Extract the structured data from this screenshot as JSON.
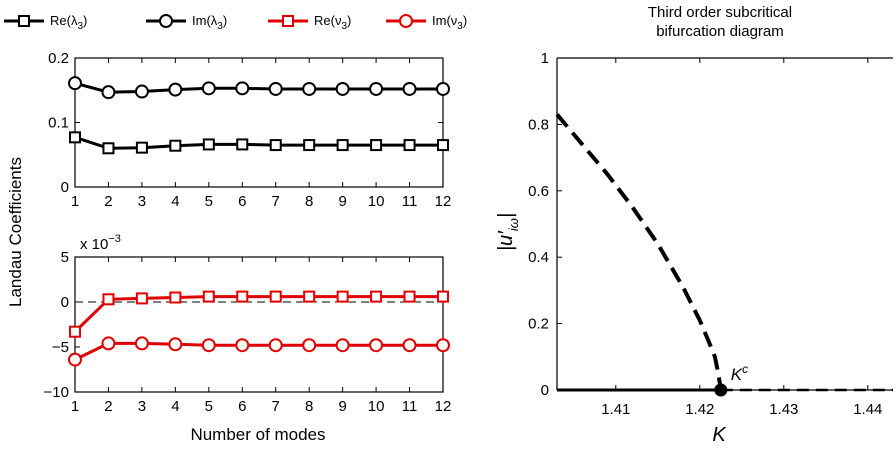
{
  "colors": {
    "black": "#000000",
    "red": "#e00000"
  },
  "legend": [
    {
      "label": "Re(λ",
      "sub": "3",
      "close": ")",
      "color": "black",
      "marker": "square"
    },
    {
      "label": "Im(λ",
      "sub": "3",
      "close": ")",
      "color": "black",
      "marker": "circle"
    },
    {
      "label": "Re(ν",
      "sub": "3",
      "close": ")",
      "color": "red",
      "marker": "square"
    },
    {
      "label": "Im(ν",
      "sub": "3",
      "close": ")",
      "color": "red",
      "marker": "circle"
    }
  ],
  "shared_labels": {
    "ylabel": "Landau Coefficients",
    "xlabel": "Number of modes"
  },
  "chart_data": [
    {
      "type": "line",
      "xlim": [
        1,
        12
      ],
      "ylim": [
        0,
        0.2
      ],
      "xticks": [
        "1",
        "2",
        "3",
        "4",
        "5",
        "6",
        "7",
        "8",
        "9",
        "10",
        "11",
        "12"
      ],
      "yticks": [
        "0",
        "0.1",
        "0.2"
      ],
      "x": [
        1,
        2,
        3,
        4,
        5,
        6,
        7,
        8,
        9,
        10,
        11,
        12
      ],
      "series": [
        {
          "name": "Re(λ3)",
          "color": "black",
          "marker": "square",
          "values": [
            0.077,
            0.06,
            0.061,
            0.064,
            0.066,
            0.066,
            0.065,
            0.065,
            0.065,
            0.065,
            0.065,
            0.065
          ]
        },
        {
          "name": "Im(λ3)",
          "color": "black",
          "marker": "circle",
          "values": [
            0.161,
            0.147,
            0.148,
            0.151,
            0.153,
            0.153,
            0.152,
            0.152,
            0.152,
            0.152,
            0.152,
            0.152
          ]
        }
      ]
    },
    {
      "type": "line",
      "xlim": [
        1,
        12
      ],
      "ylim": [
        -0.01,
        0.005
      ],
      "exponent_label": "x 10",
      "exponent_power": "−3",
      "xticks": [
        "1",
        "2",
        "3",
        "4",
        "5",
        "6",
        "7",
        "8",
        "9",
        "10",
        "11",
        "12"
      ],
      "yticks": [
        "5",
        "0",
        "−5",
        "−10"
      ],
      "reference_line": 0,
      "x": [
        1,
        2,
        3,
        4,
        5,
        6,
        7,
        8,
        9,
        10,
        11,
        12
      ],
      "series": [
        {
          "name": "Re(ν3)",
          "color": "red",
          "marker": "square",
          "values": [
            -0.0033,
            0.0003,
            0.0004,
            0.0005,
            0.0006,
            0.0006,
            0.0006,
            0.0006,
            0.0006,
            0.0006,
            0.0006,
            0.0006
          ]
        },
        {
          "name": "Im(ν3)",
          "color": "red",
          "marker": "circle",
          "values": [
            -0.0064,
            -0.0046,
            -0.0046,
            -0.0047,
            -0.0048,
            -0.0048,
            -0.0048,
            -0.0048,
            -0.0048,
            -0.0048,
            -0.0048,
            -0.0048
          ]
        }
      ]
    },
    {
      "type": "line",
      "title": "Third order subcritical bifurcation diagram",
      "title_lines": [
        "Third order subcritical",
        "bifurcation diagram"
      ],
      "xlabel": "K",
      "ylabel": "|u′iω|",
      "ylabel_main": "|u′",
      "ylabel_sub": "iω",
      "ylabel_close": "|",
      "xlim": [
        1.403,
        1.443
      ],
      "ylim": [
        0,
        1
      ],
      "xticks": [
        "1.41",
        "1.42",
        "1.43",
        "1.44"
      ],
      "yticks": [
        "0",
        "0.2",
        "0.4",
        "0.6",
        "0.8",
        "1"
      ],
      "critical_point": {
        "K": 1.4225,
        "value": 0,
        "label": "K",
        "label_sup": "c"
      },
      "unstable_branch": {
        "style": "dashed",
        "K": [
          1.403,
          1.406,
          1.409,
          1.412,
          1.415,
          1.418,
          1.42,
          1.421,
          1.4218,
          1.4222,
          1.4225
        ],
        "values": [
          0.83,
          0.74,
          0.65,
          0.55,
          0.44,
          0.31,
          0.21,
          0.15,
          0.1,
          0.05,
          0
        ]
      },
      "stable_branch": {
        "style": "solid",
        "K": [
          1.403,
          1.4225
        ],
        "values": [
          0,
          0
        ]
      },
      "unstable_zero_branch": {
        "style": "dashed",
        "K": [
          1.4225,
          1.443
        ],
        "values": [
          0,
          0
        ]
      }
    }
  ]
}
